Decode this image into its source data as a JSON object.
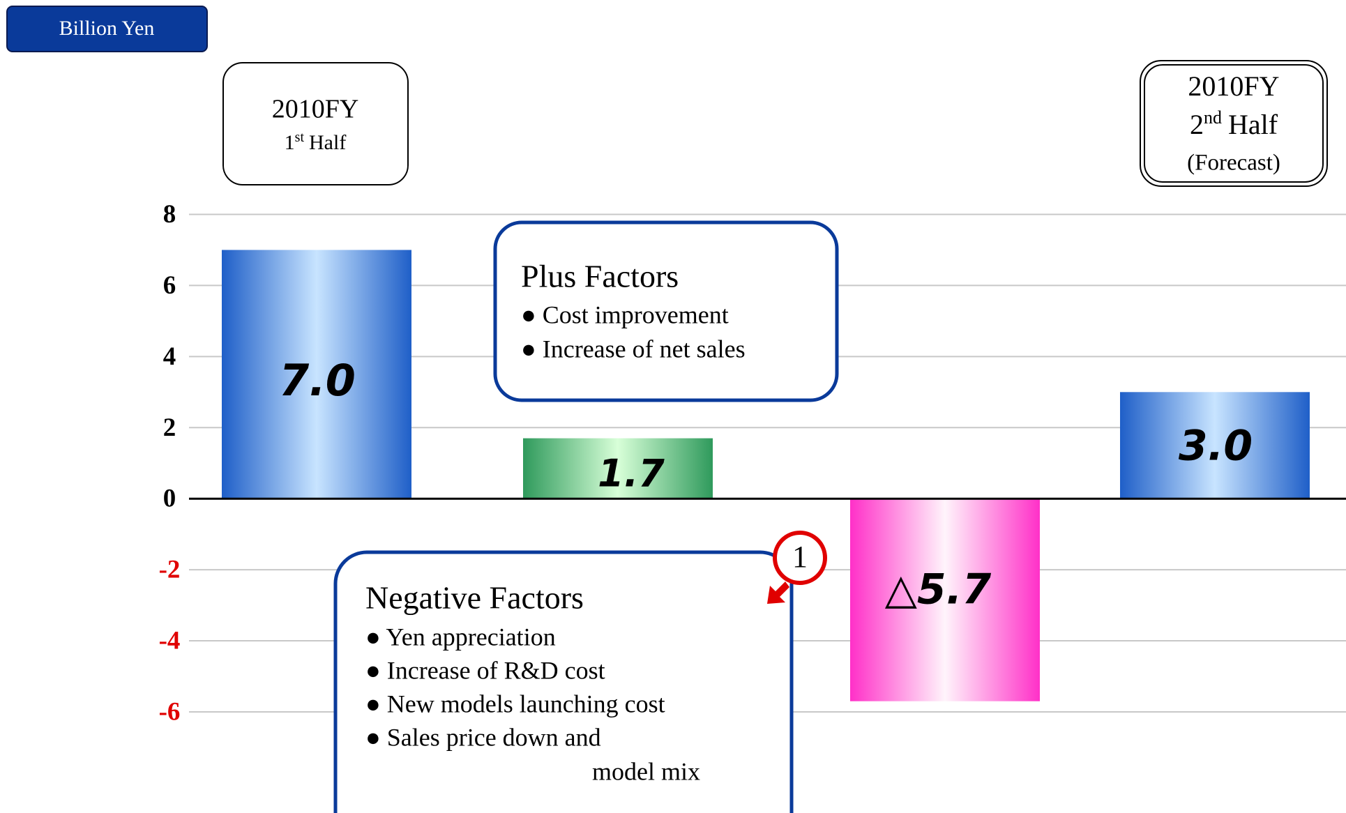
{
  "chart_data": {
    "type": "bar",
    "values": [
      7.0,
      1.7,
      -5.7,
      3.0
    ],
    "value_labels": [
      "7.0",
      "1.7",
      "△5.7",
      "3.0"
    ],
    "colors": [
      "#1f5fc8",
      "#2f9a5c",
      "#ff30c8",
      "#1f5fc8"
    ],
    "ylim": [
      -8,
      8
    ],
    "yticks": [
      8,
      6,
      4,
      2,
      0,
      -2,
      -4,
      -6
    ],
    "grid": true,
    "negative_tick_color": "#e00000",
    "annotations": {
      "unit": "Billion Yen",
      "first_half": {
        "year": "2010FY",
        "ordinal": "1",
        "suffix": "st",
        "half": "Half"
      },
      "second_half": {
        "year": "2010FY",
        "ordinal": "2",
        "suffix": "nd",
        "half": "Half",
        "note": "(Forecast)"
      },
      "plus": {
        "title": "Plus Factors",
        "items": [
          "● Cost improvement",
          "● Increase of net sales"
        ]
      },
      "negative": {
        "title": "Negative Factors",
        "items": [
          "● Yen appreciation",
          "● Increase of R&D cost",
          "● New models launching cost",
          "● Sales price down and"
        ],
        "continuation": "model mix"
      },
      "marker": "1"
    }
  }
}
